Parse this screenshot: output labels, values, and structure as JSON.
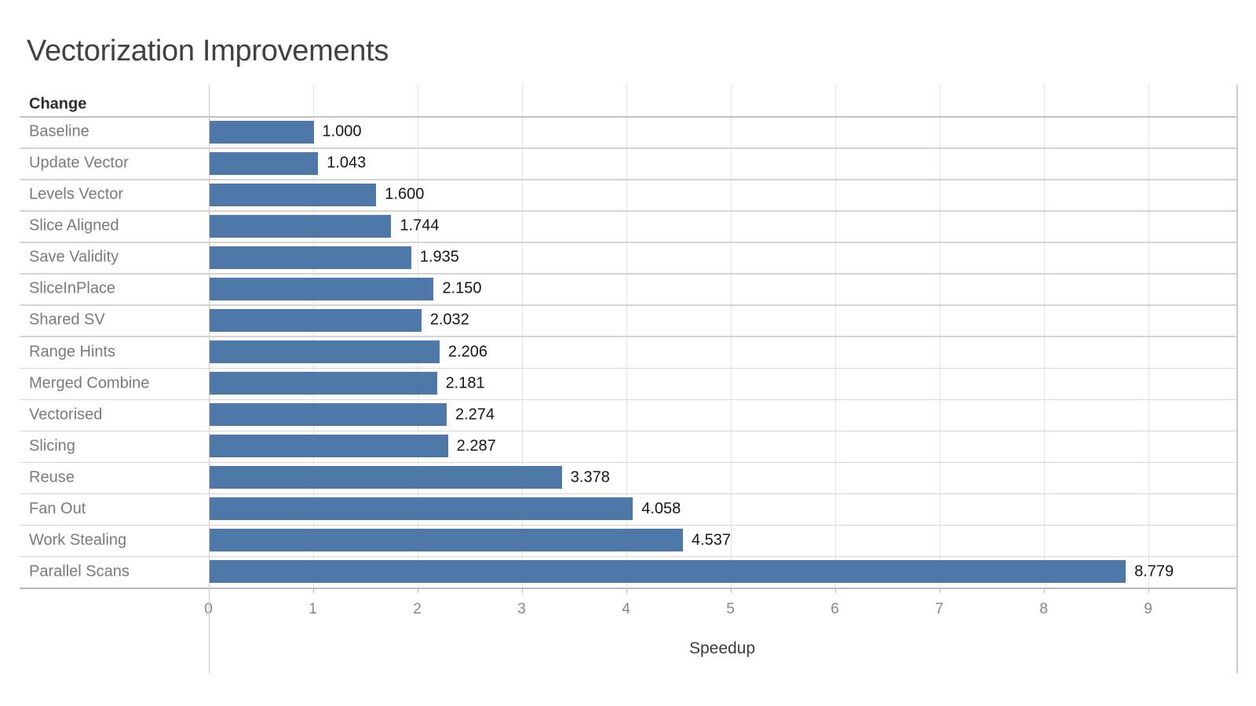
{
  "chart_data": {
    "type": "bar",
    "orientation": "horizontal",
    "title": "Vectorization Improvements",
    "row_header": "Change",
    "xlabel": "Speedup",
    "categories": [
      "Baseline",
      "Update Vector",
      "Levels Vector",
      "Slice Aligned",
      "Save Validity",
      "SliceInPlace",
      "Shared SV",
      "Range Hints",
      "Merged Combine",
      "Vectorised",
      "Slicing",
      "Reuse",
      "Fan Out",
      "Work Stealing",
      "Parallel Scans"
    ],
    "values": [
      1.0,
      1.043,
      1.6,
      1.744,
      1.935,
      2.15,
      2.032,
      2.206,
      2.181,
      2.274,
      2.287,
      3.378,
      4.058,
      4.537,
      8.779
    ],
    "value_labels": [
      "1.000",
      "1.043",
      "1.600",
      "1.744",
      "1.935",
      "2.150",
      "2.032",
      "2.206",
      "2.181",
      "2.274",
      "2.287",
      "3.378",
      "4.058",
      "4.537",
      "8.779"
    ],
    "x_ticks": [
      "0",
      "1",
      "2",
      "3",
      "4",
      "5",
      "6",
      "7",
      "8",
      "9"
    ],
    "xlim": [
      0,
      9.85
    ],
    "grid": true,
    "legend": "none",
    "bar_color": "#4d78a8",
    "colors": {
      "title": "#414141",
      "category_label": "#7a7a7a",
      "value_label": "#161616",
      "tick_label": "#878787",
      "axis_label": "#3b3b3b",
      "header": "#2e2e2e",
      "gridline": "#e3e3e3",
      "row_separator": "#d4d4d4",
      "header_separator": "#c3c3c3",
      "axis_line": "#bcbcbc",
      "pane_border": "#cccccc"
    }
  }
}
